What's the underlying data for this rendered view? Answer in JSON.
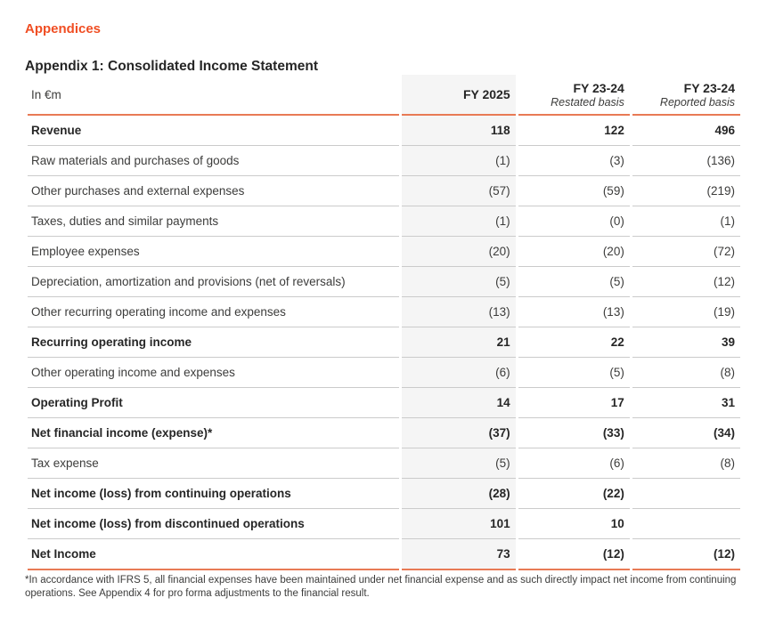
{
  "page": {
    "section_title": "Appendices",
    "table_title": "Appendix 1: Consolidated Income Statement"
  },
  "table": {
    "unit_label": "In €m",
    "columns": [
      {
        "label": "FY 2025",
        "sublabel": ""
      },
      {
        "label": "FY 23-24",
        "sublabel": "Restated basis"
      },
      {
        "label": "FY 23-24",
        "sublabel": "Reported basis"
      }
    ],
    "rows": [
      {
        "label": "Revenue",
        "bold": true,
        "values": [
          "118",
          "122",
          "496"
        ]
      },
      {
        "label": "Raw materials and purchases of goods",
        "bold": false,
        "values": [
          "(1)",
          "(3)",
          "(136)"
        ]
      },
      {
        "label": "Other purchases and external expenses",
        "bold": false,
        "values": [
          "(57)",
          "(59)",
          "(219)"
        ]
      },
      {
        "label": "Taxes, duties and similar payments",
        "bold": false,
        "values": [
          "(1)",
          "(0)",
          "(1)"
        ]
      },
      {
        "label": "Employee expenses",
        "bold": false,
        "values": [
          "(20)",
          "(20)",
          "(72)"
        ]
      },
      {
        "label": "Depreciation, amortization and provisions (net of reversals)",
        "bold": false,
        "values": [
          "(5)",
          "(5)",
          "(12)"
        ]
      },
      {
        "label": "Other recurring operating income and expenses",
        "bold": false,
        "values": [
          "(13)",
          "(13)",
          "(19)"
        ]
      },
      {
        "label": "Recurring operating income",
        "bold": true,
        "values": [
          "21",
          "22",
          "39"
        ]
      },
      {
        "label": "Other operating income and expenses",
        "bold": false,
        "values": [
          "(6)",
          "(5)",
          "(8)"
        ]
      },
      {
        "label": "Operating Profit",
        "bold": true,
        "values": [
          "14",
          "17",
          "31"
        ]
      },
      {
        "label": "Net financial income (expense)*",
        "bold": true,
        "values": [
          "(37)",
          "(33)",
          "(34)"
        ]
      },
      {
        "label": "Tax expense",
        "bold": false,
        "values": [
          "(5)",
          "(6)",
          "(8)"
        ]
      },
      {
        "label": "Net income (loss) from continuing operations",
        "bold": true,
        "values": [
          "(28)",
          "(22)",
          ""
        ]
      },
      {
        "label": "Net income (loss) from discontinued operations",
        "bold": true,
        "values": [
          "101",
          "10",
          ""
        ]
      },
      {
        "label": "Net Income",
        "bold": true,
        "values": [
          "73",
          "(12)",
          "(12)"
        ]
      }
    ]
  },
  "footnote": "*In accordance with IFRS 5, all financial expenses have been maintained under net financial expense and as such directly impact net income from continuing operations. See Appendix 4 for pro forma adjustments to the financial result.",
  "colors": {
    "accent_heading": "#F04E23",
    "table_rule": "#E87A55",
    "row_divider": "#CBCBCB",
    "highlight_column_bg": "#F5F5F5",
    "text_regular": "#3C3C3B",
    "text_bold": "#262626"
  }
}
